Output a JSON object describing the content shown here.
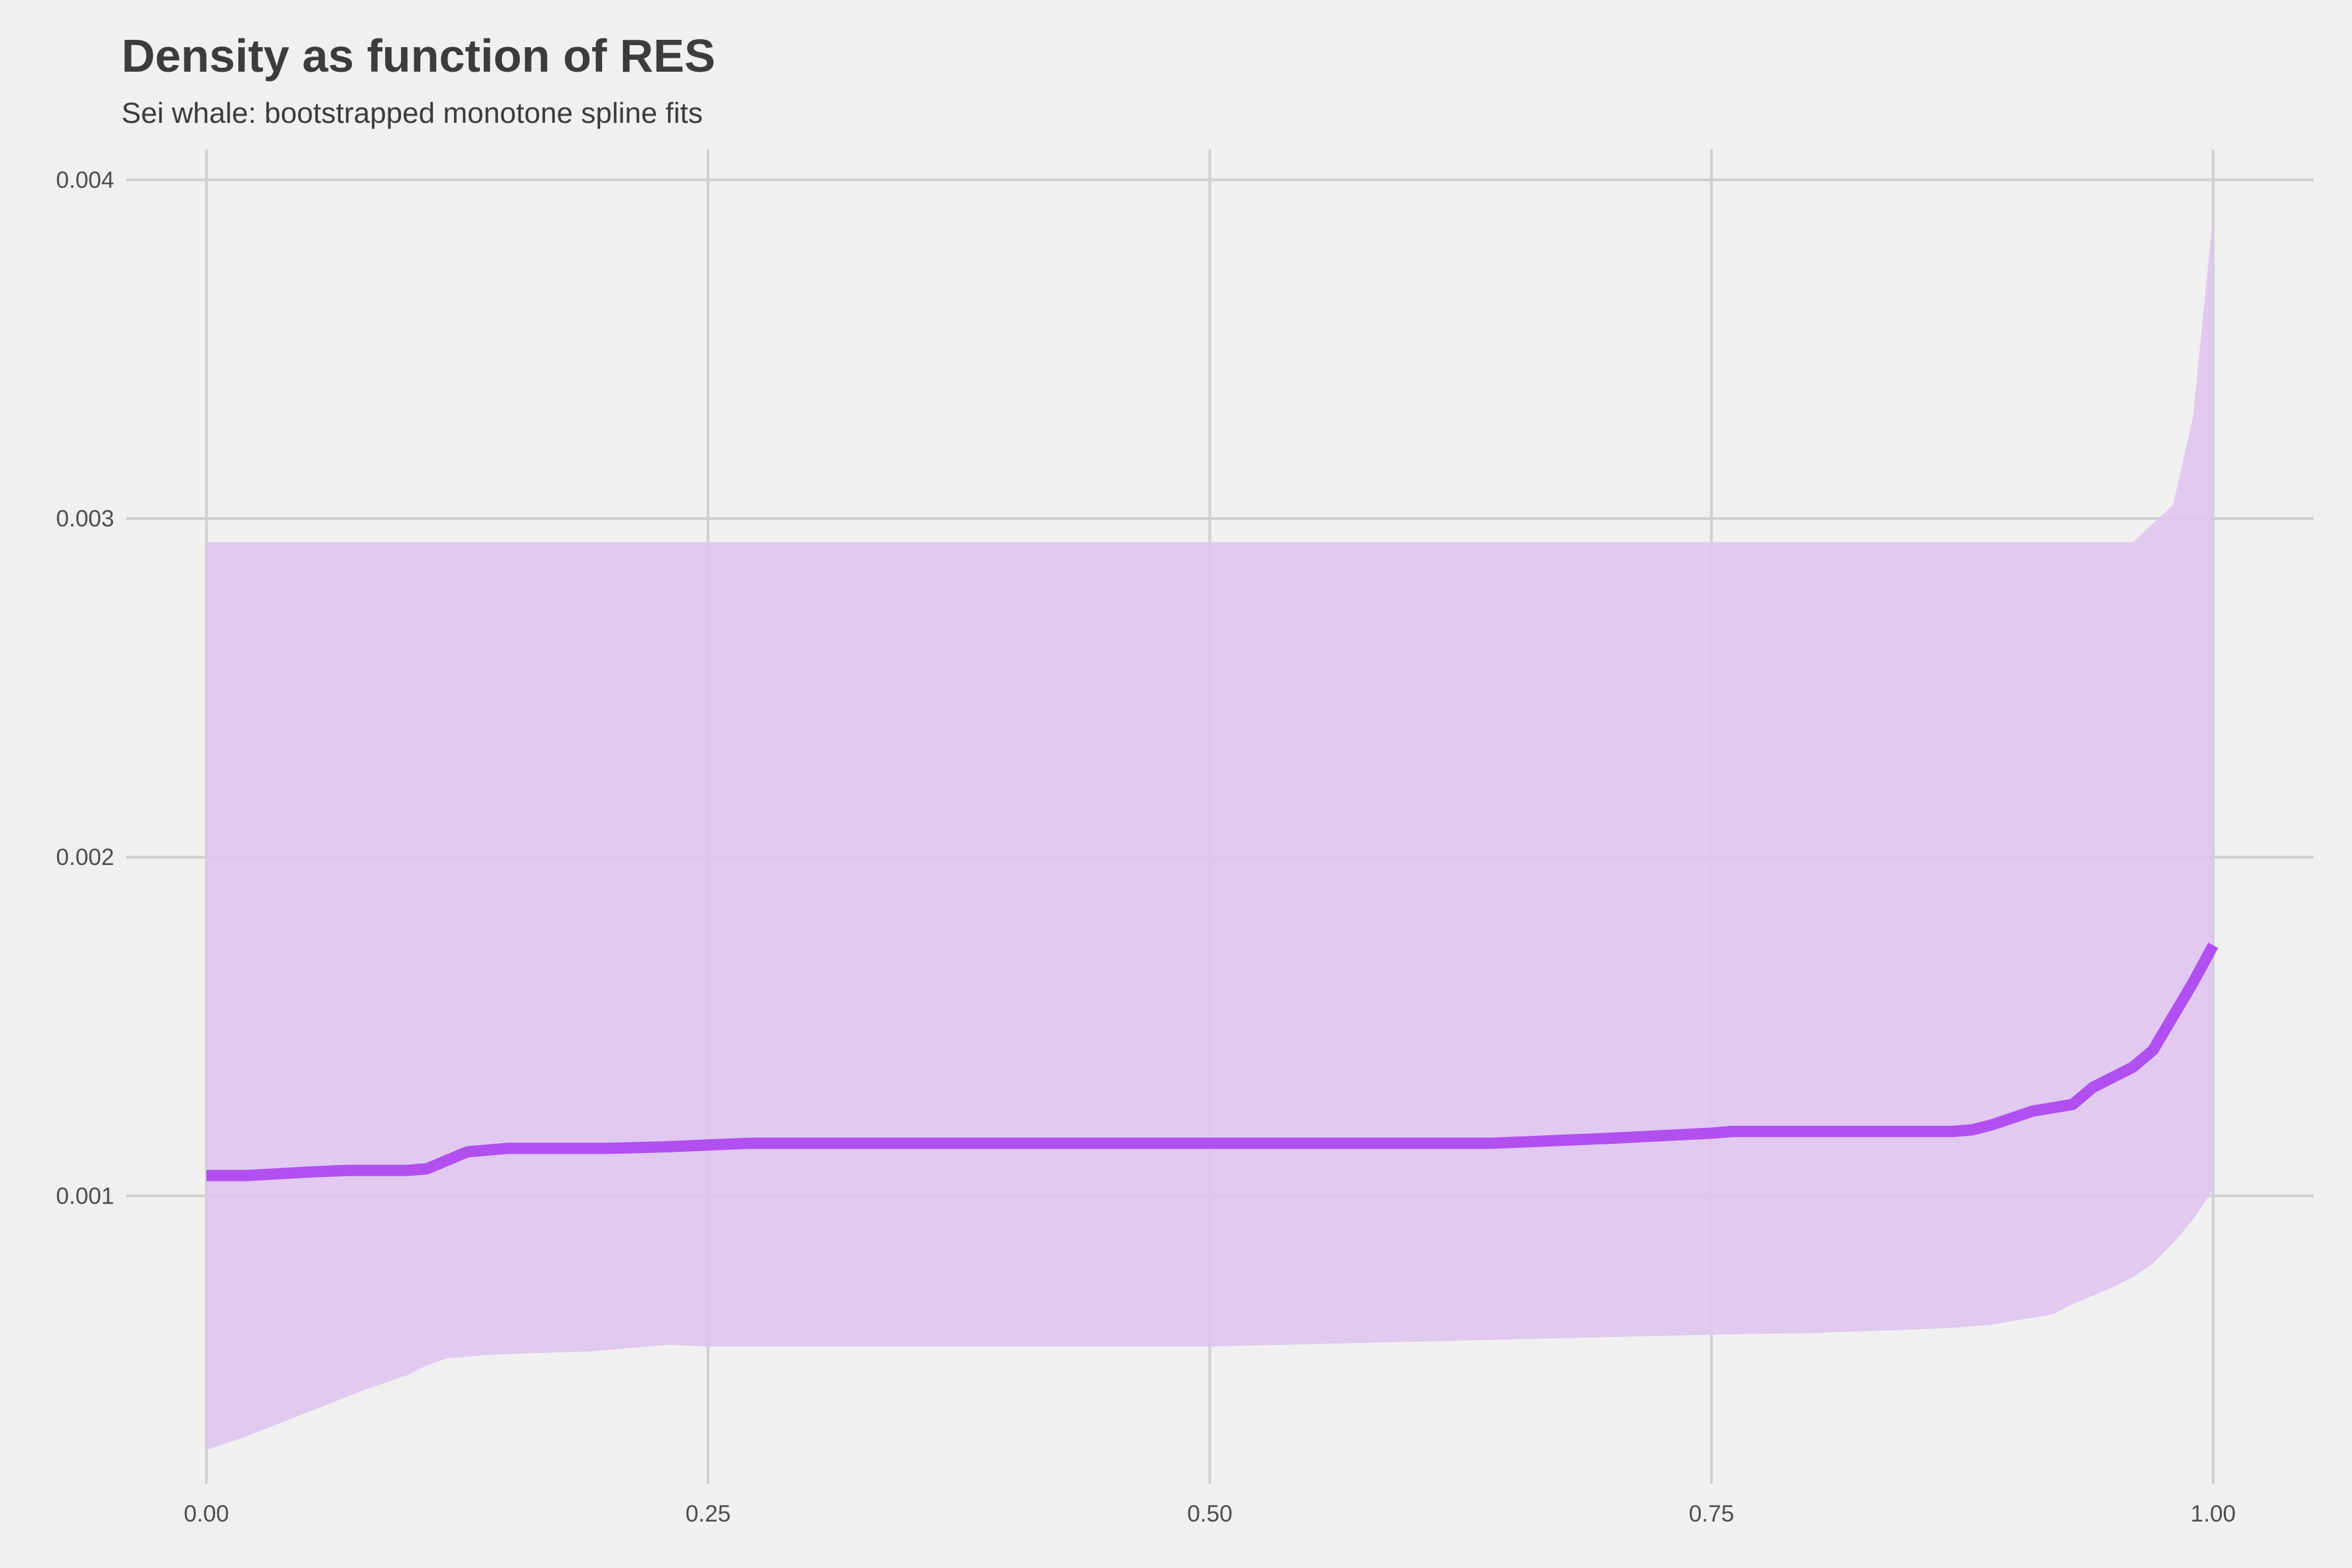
{
  "chart_data": {
    "type": "line",
    "title": "Density as function of RES",
    "subtitle": "Sei whale: bootstrapped monotone spline fits",
    "xlabel": "",
    "ylabel": "",
    "xlim": [
      -0.04,
      1.05
    ],
    "ylim": [
      0.00015,
      0.00409
    ],
    "x_ticks": [
      0.0,
      0.25,
      0.5,
      0.75,
      1.0
    ],
    "x_tick_labels": [
      "0.00",
      "0.25",
      "0.50",
      "0.75",
      "1.00"
    ],
    "y_ticks": [
      0.001,
      0.002,
      0.003,
      0.004
    ],
    "y_tick_labels": [
      "0.001",
      "0.002",
      "0.003",
      "0.004"
    ],
    "grid": true,
    "legend": "none",
    "colors": {
      "line": "#b14ff0",
      "band": "#e0c6f0",
      "background": "#f0f0f0",
      "grid": "#cfcfcf",
      "text": "#3c3c3c"
    },
    "series": [
      {
        "role": "median",
        "x": [
          0,
          0.02,
          0.05,
          0.07,
          0.1,
          0.11,
          0.13,
          0.15,
          0.2,
          0.23,
          0.25,
          0.27,
          0.3,
          0.4,
          0.5,
          0.6,
          0.64,
          0.7,
          0.75,
          0.76,
          0.8,
          0.87,
          0.88,
          0.89,
          0.9,
          0.91,
          0.92,
          0.93,
          0.94,
          0.95,
          0.96,
          0.97,
          0.98,
          0.99,
          1.0
        ],
        "y": [
          0.00106,
          0.00106,
          0.00107,
          0.001075,
          0.001075,
          0.00108,
          0.00113,
          0.00114,
          0.00114,
          0.001145,
          0.00115,
          0.001155,
          0.001155,
          0.001155,
          0.001155,
          0.001155,
          0.001155,
          0.00117,
          0.001185,
          0.00119,
          0.00119,
          0.00119,
          0.001195,
          0.00121,
          0.00123,
          0.00125,
          0.00126,
          0.00127,
          0.00132,
          0.00135,
          0.00138,
          0.00143,
          0.00153,
          0.00163,
          0.00174
        ]
      },
      {
        "role": "upper",
        "x": [
          0,
          0.96,
          0.98,
          0.99,
          1.0
        ],
        "y": [
          0.00293,
          0.00293,
          0.00304,
          0.0033,
          0.0039
        ]
      },
      {
        "role": "lower",
        "x": [
          0,
          0.02,
          0.05,
          0.08,
          0.1,
          0.11,
          0.12,
          0.14,
          0.16,
          0.19,
          0.21,
          0.23,
          0.25,
          0.3,
          0.5,
          0.75,
          0.8,
          0.85,
          0.87,
          0.89,
          0.91,
          0.92,
          0.93,
          0.95,
          0.96,
          0.97,
          0.98,
          0.99,
          1.0
        ],
        "y": [
          0.00025,
          0.00029,
          0.00036,
          0.00043,
          0.00047,
          0.0005,
          0.00052,
          0.00053,
          0.000535,
          0.00054,
          0.00055,
          0.00056,
          0.000555,
          0.000555,
          0.000555,
          0.00059,
          0.000595,
          0.000605,
          0.00061,
          0.00062,
          0.00064,
          0.00065,
          0.00068,
          0.00073,
          0.00076,
          0.0008,
          0.00086,
          0.00093,
          0.00102
        ]
      }
    ]
  }
}
